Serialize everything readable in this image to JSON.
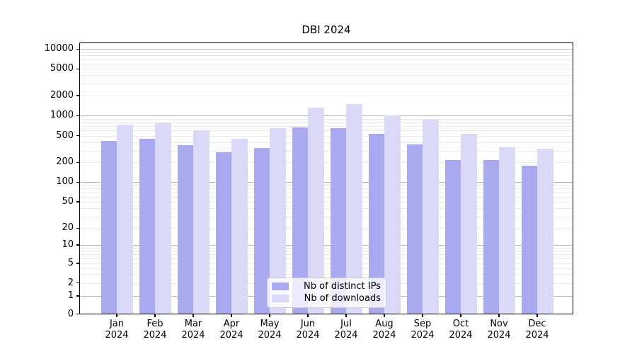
{
  "chart_data": {
    "type": "bar",
    "title": "DBI 2024",
    "categories": [
      "Jan",
      "Feb",
      "Mar",
      "Apr",
      "May",
      "Jun",
      "Jul",
      "Aug",
      "Sep",
      "Oct",
      "Nov",
      "Dec"
    ],
    "category_year": "2024",
    "series": [
      {
        "name": "Nb of distinct IPs",
        "color": "#a9a9f0",
        "values": [
          415,
          450,
          365,
          280,
          330,
          670,
          645,
          530,
          375,
          215,
          215,
          178
        ]
      },
      {
        "name": "Nb of downloads",
        "color": "#dadaf8",
        "values": [
          730,
          770,
          600,
          450,
          650,
          1310,
          1480,
          1010,
          870,
          530,
          340,
          320
        ]
      }
    ],
    "xlabel": "",
    "ylabel": "",
    "yscale": "symlog",
    "yticks": [
      0,
      1,
      2,
      5,
      10,
      20,
      50,
      100,
      200,
      500,
      1000,
      2000,
      5000,
      10000
    ],
    "ylim": [
      0,
      12500
    ],
    "grid": "both",
    "legend_position": "inside lower-center"
  }
}
